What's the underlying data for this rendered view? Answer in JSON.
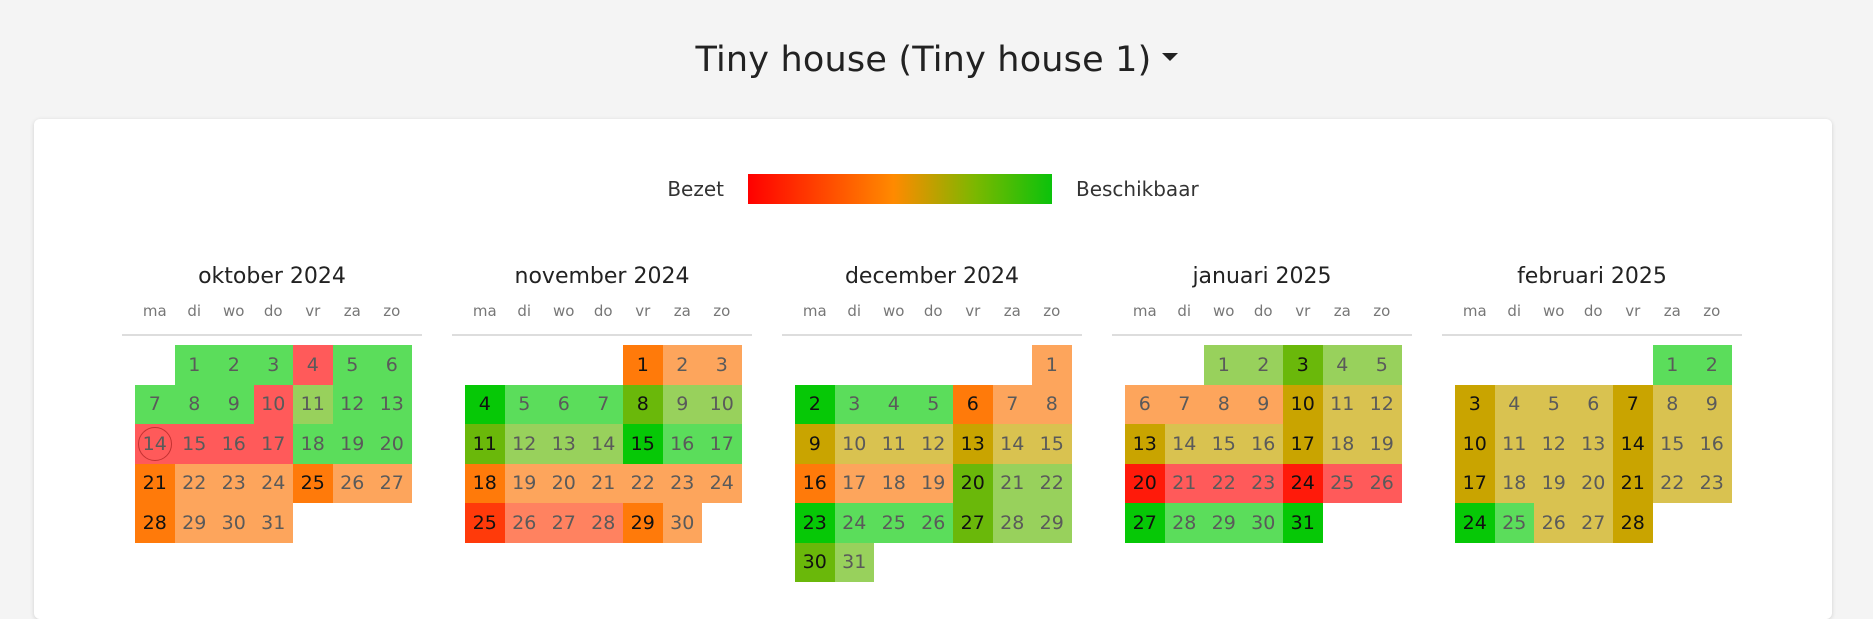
{
  "header": {
    "title": "Tiny house (Tiny house 1)"
  },
  "legend": {
    "left_label": "Bezet",
    "right_label": "Beschikbaar"
  },
  "weekdays": [
    "ma",
    "di",
    "wo",
    "do",
    "vr",
    "za",
    "zo"
  ],
  "status_colors": {
    "A": "#5bdd5b",
    "A2": "#98d15c",
    "B": "#06c806",
    "C": "#6ab80a",
    "D": "#fda55c",
    "E": "#ff7a0a",
    "F": "#ff5a5a",
    "G": "#ff8260",
    "H": "#d9c250",
    "I": "#c9a400",
    "J": "#ff1a0a",
    "K": "#ff3a0a"
  },
  "months": [
    {
      "name": "oktober 2024",
      "offset": 1,
      "days": [
        "A",
        "A",
        "A",
        "F",
        "A",
        "A",
        "A",
        "A",
        "A",
        "F",
        "A2",
        "A",
        "A",
        "F",
        "F",
        "F",
        "F",
        "A",
        "A",
        "A",
        "E",
        "D",
        "D",
        "D",
        "E",
        "D",
        "D",
        "E",
        "D",
        "D",
        "D"
      ],
      "dark": [
        21,
        25,
        28
      ],
      "today": 14
    },
    {
      "name": "november 2024",
      "offset": 4,
      "days": [
        "E",
        "D",
        "D",
        "B",
        "A",
        "A",
        "A",
        "C",
        "A2",
        "A2",
        "C",
        "A2",
        "A2",
        "A2",
        "B",
        "A",
        "A",
        "E",
        "D",
        "D",
        "D",
        "D",
        "D",
        "D",
        "K",
        "G",
        "G",
        "G",
        "E",
        "D"
      ],
      "dark": [
        1,
        4,
        8,
        11,
        15,
        18,
        25,
        29
      ],
      "today": null
    },
    {
      "name": "december 2024",
      "offset": 6,
      "days": [
        "D",
        "B",
        "A",
        "A",
        "A",
        "E",
        "D",
        "D",
        "I",
        "H",
        "H",
        "H",
        "I",
        "H",
        "H",
        "E",
        "D",
        "D",
        "D",
        "C",
        "A2",
        "A2",
        "B",
        "A",
        "A",
        "A",
        "C",
        "A2",
        "A2",
        "C",
        "A2"
      ],
      "dark": [
        2,
        6,
        9,
        13,
        16,
        20,
        23,
        27,
        30
      ],
      "today": null
    },
    {
      "name": "januari 2025",
      "offset": 2,
      "days": [
        "A2",
        "A2",
        "C",
        "A2",
        "A2",
        "D",
        "D",
        "D",
        "D",
        "I",
        "H",
        "H",
        "I",
        "H",
        "H",
        "H",
        "I",
        "H",
        "H",
        "J",
        "F",
        "F",
        "F",
        "J",
        "F",
        "F",
        "B",
        "A",
        "A",
        "A",
        "B"
      ],
      "dark": [
        3,
        10,
        13,
        17,
        20,
        24,
        27,
        31
      ],
      "today": null
    },
    {
      "name": "februari 2025",
      "offset": 5,
      "days": [
        "A",
        "A",
        "I",
        "H",
        "H",
        "H",
        "I",
        "H",
        "H",
        "I",
        "H",
        "H",
        "H",
        "I",
        "H",
        "H",
        "I",
        "H",
        "H",
        "H",
        "I",
        "H",
        "H",
        "B",
        "A",
        "H",
        "H",
        "I"
      ],
      "dark": [
        3,
        7,
        10,
        14,
        17,
        21,
        24,
        28
      ],
      "today": null
    }
  ]
}
